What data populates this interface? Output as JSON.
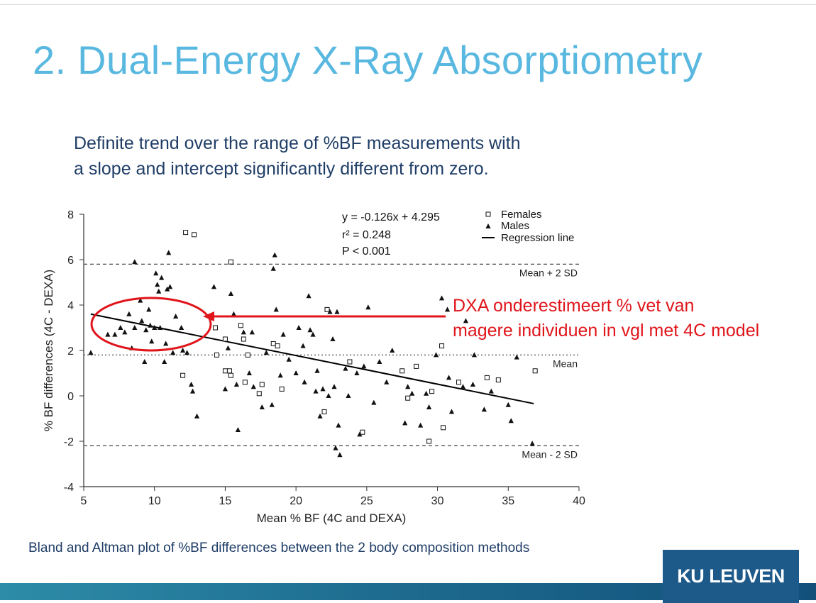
{
  "slide": {
    "title": "2. Dual-Energy X-Ray Absorptiometry",
    "subtitle_line1": "Definite trend over the range of %BF measurements with",
    "subtitle_line2": "a slope and intercept significantly different from zero.",
    "annotation_line1": "DXA onderestimeert % vet van",
    "annotation_line2": "magere individuen in vgl met 4C model",
    "caption": "Bland and Altman plot of %BF differences between the 2 body composition methods",
    "logo_text": "KU LEUVEN",
    "colors": {
      "title": "#59b8e0",
      "text": "#1f3d66",
      "annotation": "#e0151b",
      "logo_bg": "#1d5a8a"
    }
  },
  "chart_data": {
    "type": "scatter",
    "xlabel": "Mean % BF (4C and DEXA)",
    "ylabel": "% BF differences (4C - DEXA)",
    "xlim": [
      5,
      40
    ],
    "ylim": [
      -4,
      8
    ],
    "xticks": [
      5,
      10,
      15,
      20,
      25,
      30,
      35,
      40
    ],
    "yticks": [
      -4,
      -2,
      0,
      2,
      4,
      6,
      8
    ],
    "stats": [
      "y = -0.126x + 4.295",
      "r² = 0.248",
      "P < 0.001"
    ],
    "legend": [
      "Females",
      "Males",
      "Regression line"
    ],
    "reference_lines": [
      {
        "label": "Mean + 2 SD",
        "y": 5.8
      },
      {
        "label": "Mean",
        "y": 1.8
      },
      {
        "label": "Mean - 2 SD",
        "y": -2.2
      }
    ],
    "regression": {
      "slope": -0.126,
      "intercept": 4.295,
      "x_range": [
        5.5,
        36.8
      ]
    },
    "series": [
      {
        "name": "Females",
        "marker": "square",
        "points": [
          [
            12.2,
            7.2
          ],
          [
            12.8,
            7.1
          ],
          [
            15.4,
            5.9
          ],
          [
            12.0,
            0.9
          ],
          [
            14.3,
            3.0
          ],
          [
            15.0,
            2.5
          ],
          [
            14.4,
            1.8
          ],
          [
            15.0,
            1.1
          ],
          [
            15.3,
            1.1
          ],
          [
            15.4,
            0.9
          ],
          [
            16.1,
            3.1
          ],
          [
            16.3,
            2.5
          ],
          [
            16.6,
            1.8
          ],
          [
            16.4,
            0.6
          ],
          [
            17.6,
            0.5
          ],
          [
            17.4,
            0.1
          ],
          [
            18.4,
            2.3
          ],
          [
            18.7,
            2.2
          ],
          [
            19.0,
            0.3
          ],
          [
            22.2,
            3.8
          ],
          [
            22.0,
            -0.7
          ],
          [
            23.8,
            1.5
          ],
          [
            24.7,
            -1.6
          ],
          [
            27.5,
            1.1
          ],
          [
            27.9,
            -0.1
          ],
          [
            28.5,
            1.3
          ],
          [
            29.4,
            -2.0
          ],
          [
            29.6,
            0.2
          ],
          [
            30.3,
            2.2
          ],
          [
            30.4,
            -1.4
          ],
          [
            31.5,
            0.6
          ],
          [
            33.5,
            0.8
          ],
          [
            34.3,
            0.7
          ],
          [
            36.9,
            1.1
          ]
        ]
      },
      {
        "name": "Males",
        "marker": "triangle",
        "points": [
          [
            5.5,
            1.9
          ],
          [
            6.7,
            2.7
          ],
          [
            7.2,
            2.7
          ],
          [
            7.6,
            3.0
          ],
          [
            7.9,
            2.8
          ],
          [
            8.2,
            3.6
          ],
          [
            8.4,
            2.1
          ],
          [
            8.6,
            3.0
          ],
          [
            8.6,
            5.9
          ],
          [
            9.0,
            4.2
          ],
          [
            9.1,
            3.3
          ],
          [
            9.3,
            1.5
          ],
          [
            9.4,
            2.9
          ],
          [
            9.6,
            3.8
          ],
          [
            9.7,
            3.1
          ],
          [
            9.8,
            2.4
          ],
          [
            10.0,
            3.0
          ],
          [
            10.1,
            5.4
          ],
          [
            10.2,
            4.9
          ],
          [
            10.3,
            4.6
          ],
          [
            10.4,
            3.0
          ],
          [
            10.5,
            5.2
          ],
          [
            10.7,
            1.5
          ],
          [
            10.8,
            2.3
          ],
          [
            10.9,
            4.7
          ],
          [
            11.0,
            6.3
          ],
          [
            11.1,
            4.8
          ],
          [
            11.3,
            1.9
          ],
          [
            11.5,
            3.5
          ],
          [
            11.9,
            3.0
          ],
          [
            12.0,
            2.0
          ],
          [
            12.3,
            1.9
          ],
          [
            12.6,
            0.5
          ],
          [
            12.7,
            0.2
          ],
          [
            13.0,
            -0.9
          ],
          [
            14.2,
            4.8
          ],
          [
            15.0,
            0.3
          ],
          [
            15.2,
            2.1
          ],
          [
            15.4,
            4.5
          ],
          [
            15.6,
            3.6
          ],
          [
            15.8,
            0.5
          ],
          [
            15.9,
            -1.5
          ],
          [
            16.3,
            2.8
          ],
          [
            16.7,
            1.0
          ],
          [
            16.9,
            2.8
          ],
          [
            17.0,
            0.4
          ],
          [
            17.6,
            -0.5
          ],
          [
            17.9,
            1.9
          ],
          [
            18.3,
            -0.4
          ],
          [
            18.4,
            5.6
          ],
          [
            18.5,
            6.2
          ],
          [
            18.6,
            3.8
          ],
          [
            18.9,
            0.9
          ],
          [
            19.1,
            2.7
          ],
          [
            19.5,
            1.6
          ],
          [
            20.0,
            1.0
          ],
          [
            20.2,
            3.0
          ],
          [
            20.5,
            2.2
          ],
          [
            20.6,
            0.6
          ],
          [
            20.9,
            4.4
          ],
          [
            21.0,
            2.9
          ],
          [
            21.2,
            2.7
          ],
          [
            21.4,
            0.2
          ],
          [
            21.5,
            1.1
          ],
          [
            21.7,
            -0.9
          ],
          [
            21.9,
            0.3
          ],
          [
            22.3,
            0.0
          ],
          [
            22.4,
            3.7
          ],
          [
            22.6,
            2.5
          ],
          [
            22.7,
            0.4
          ],
          [
            22.8,
            -2.3
          ],
          [
            22.9,
            3.7
          ],
          [
            23.0,
            -1.3
          ],
          [
            23.1,
            -2.6
          ],
          [
            23.5,
            1.2
          ],
          [
            23.7,
            0.0
          ],
          [
            24.3,
            1.0
          ],
          [
            24.5,
            -1.7
          ],
          [
            24.8,
            1.3
          ],
          [
            25.1,
            3.9
          ],
          [
            25.5,
            -0.3
          ],
          [
            25.9,
            1.5
          ],
          [
            26.4,
            0.6
          ],
          [
            26.8,
            2.0
          ],
          [
            27.7,
            -1.2
          ],
          [
            27.9,
            0.4
          ],
          [
            28.2,
            0.1
          ],
          [
            28.8,
            -1.3
          ],
          [
            29.2,
            0.1
          ],
          [
            29.4,
            -0.5
          ],
          [
            29.9,
            1.8
          ],
          [
            30.3,
            4.3
          ],
          [
            30.7,
            3.8
          ],
          [
            30.8,
            0.8
          ],
          [
            31.0,
            -0.7
          ],
          [
            31.8,
            0.4
          ],
          [
            32.0,
            3.3
          ],
          [
            32.5,
            0.5
          ],
          [
            32.6,
            1.8
          ],
          [
            33.3,
            -0.6
          ],
          [
            33.8,
            0.2
          ],
          [
            35.0,
            -0.4
          ],
          [
            35.2,
            -1.1
          ],
          [
            35.6,
            1.7
          ],
          [
            36.7,
            -2.1
          ]
        ]
      }
    ]
  }
}
